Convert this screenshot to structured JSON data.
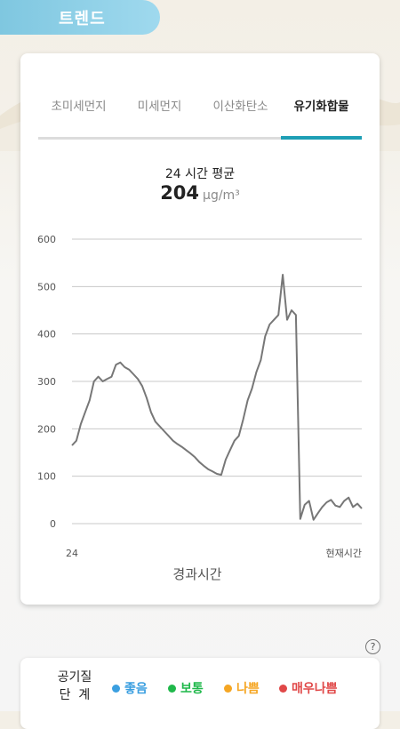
{
  "header": {
    "title": "트렌드"
  },
  "tabs": [
    {
      "label": "초미세먼지",
      "active": false
    },
    {
      "label": "미세먼지",
      "active": false
    },
    {
      "label": "이산화탄소",
      "active": false
    },
    {
      "label": "유기화합물",
      "active": true
    }
  ],
  "summary": {
    "label": "24 시간 평균",
    "value": "204",
    "unit": "μg/m³"
  },
  "chart_data": {
    "type": "line",
    "title": "",
    "xlabel": "경과시간",
    "ylabel": "",
    "x_start_label": "24",
    "x_end_label": "현재시간",
    "ylim": [
      0,
      600
    ],
    "yticks": [
      0,
      100,
      200,
      300,
      400,
      500,
      600
    ],
    "grid": true,
    "line_color": "#777777",
    "series": [
      {
        "values": [
          165,
          175,
          210,
          235,
          260,
          300,
          310,
          300,
          305,
          310,
          335,
          340,
          330,
          325,
          315,
          305,
          290,
          265,
          235,
          215,
          205,
          195,
          185,
          175,
          168,
          162,
          155,
          148,
          140,
          130,
          122,
          115,
          110,
          105,
          103,
          135,
          155,
          175,
          185,
          220,
          260,
          285,
          320,
          345,
          395,
          420,
          430,
          440,
          525,
          430,
          450,
          440,
          10,
          40,
          48,
          8,
          22,
          35,
          45,
          50,
          38,
          35,
          48,
          55,
          35,
          42,
          32
        ]
      }
    ]
  },
  "legend": {
    "title_line1": "공기질",
    "title_line2": "단  계",
    "items": [
      {
        "label": "좋음",
        "color": "#3b9fe0"
      },
      {
        "label": "보통",
        "color": "#1fb84a"
      },
      {
        "label": "나쁨",
        "color": "#f5a623"
      },
      {
        "label": "매우나쁨",
        "color": "#e04848"
      }
    ]
  }
}
